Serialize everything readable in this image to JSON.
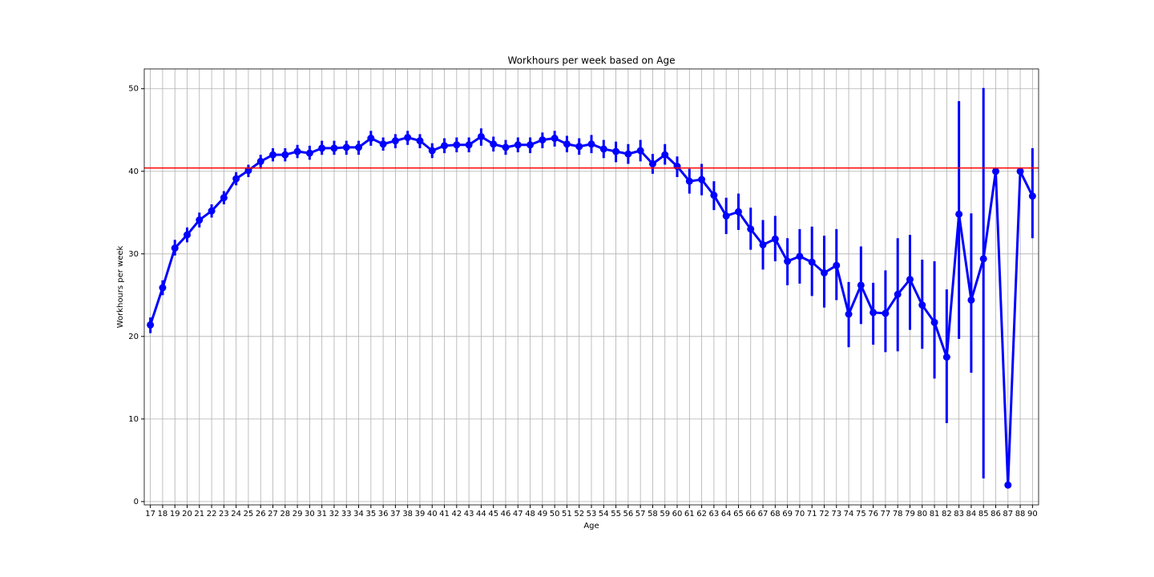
{
  "chart_data": {
    "type": "pointplot",
    "title": "Workhours per week based on Age",
    "x_label": "Age",
    "y_label": "Workhours per week",
    "categories": [
      "17",
      "18",
      "19",
      "20",
      "21",
      "22",
      "23",
      "24",
      "25",
      "26",
      "27",
      "28",
      "29",
      "30",
      "31",
      "32",
      "33",
      "34",
      "35",
      "36",
      "37",
      "38",
      "39",
      "40",
      "41",
      "42",
      "43",
      "44",
      "45",
      "46",
      "47",
      "48",
      "49",
      "50",
      "51",
      "52",
      "53",
      "54",
      "55",
      "56",
      "57",
      "58",
      "59",
      "60",
      "61",
      "62",
      "63",
      "64",
      "65",
      "66",
      "67",
      "68",
      "69",
      "70",
      "71",
      "72",
      "73",
      "74",
      "75",
      "76",
      "77",
      "78",
      "79",
      "80",
      "81",
      "82",
      "83",
      "84",
      "85",
      "86",
      "87",
      "88",
      "90"
    ],
    "series": [
      {
        "color": "#0000ff",
        "values": [
          21.4,
          25.9,
          30.7,
          32.3,
          34.1,
          35.2,
          36.8,
          39.1,
          40.1,
          41.2,
          42.0,
          42.0,
          42.4,
          42.2,
          42.8,
          42.8,
          42.9,
          42.9,
          44.0,
          43.3,
          43.7,
          44.1,
          43.7,
          42.5,
          43.1,
          43.2,
          43.2,
          44.2,
          43.3,
          42.9,
          43.2,
          43.2,
          43.8,
          44.0,
          43.3,
          43.0,
          43.3,
          42.7,
          42.4,
          42.1,
          42.5,
          40.9,
          42.0,
          40.6,
          38.8,
          39.0,
          37.1,
          34.6,
          35.1,
          33.0,
          31.1,
          31.8,
          29.1,
          29.7,
          29.0,
          27.7,
          28.6,
          22.7,
          26.2,
          22.9,
          22.8,
          25.1,
          26.9,
          23.8,
          21.7,
          17.5,
          34.8,
          24.4,
          29.4,
          40.0,
          2.0,
          40.0,
          37.0
        ],
        "lower": [
          20.4,
          25.0,
          29.8,
          31.4,
          33.2,
          34.4,
          36.0,
          38.3,
          39.3,
          40.3,
          41.2,
          41.2,
          41.6,
          41.4,
          42.0,
          42.0,
          42.0,
          42.0,
          43.1,
          42.5,
          42.8,
          43.2,
          42.8,
          41.6,
          42.2,
          42.3,
          42.3,
          43.1,
          42.4,
          42.0,
          42.3,
          42.2,
          42.8,
          43.0,
          42.3,
          42.0,
          42.2,
          41.6,
          41.1,
          40.9,
          41.2,
          39.7,
          40.8,
          39.3,
          37.3,
          37.1,
          35.3,
          32.4,
          32.9,
          30.5,
          28.1,
          29.1,
          26.2,
          26.4,
          24.9,
          23.5,
          24.4,
          18.7,
          21.5,
          19.0,
          18.1,
          18.2,
          20.8,
          18.5,
          14.9,
          9.5,
          19.7,
          15.6,
          2.8,
          40.0,
          2.0,
          40.0,
          31.9
        ],
        "upper": [
          22.3,
          26.8,
          31.7,
          33.2,
          35.0,
          36.0,
          37.6,
          39.9,
          40.8,
          42.0,
          42.8,
          42.8,
          43.2,
          43.1,
          43.7,
          43.7,
          43.7,
          43.7,
          44.9,
          44.1,
          44.5,
          44.9,
          44.5,
          43.4,
          44.0,
          44.1,
          44.1,
          45.2,
          44.2,
          43.8,
          44.1,
          44.1,
          44.7,
          44.9,
          44.3,
          44.0,
          44.4,
          43.8,
          43.6,
          43.3,
          43.8,
          42.1,
          43.3,
          41.8,
          40.3,
          40.9,
          38.8,
          36.8,
          37.3,
          35.6,
          34.1,
          34.6,
          31.9,
          33.0,
          33.3,
          32.2,
          33.0,
          26.6,
          30.9,
          26.5,
          28.0,
          31.9,
          32.3,
          29.3,
          29.1,
          25.7,
          48.5,
          34.9,
          50.1,
          40.0,
          2.0,
          40.0,
          42.8
        ]
      }
    ],
    "reference_line": {
      "value": 40.4,
      "color": "#ff0000"
    },
    "ylim": [
      -0.4,
      52.4
    ],
    "yticks": [
      0,
      10,
      20,
      30,
      40,
      50
    ],
    "grid": true
  }
}
